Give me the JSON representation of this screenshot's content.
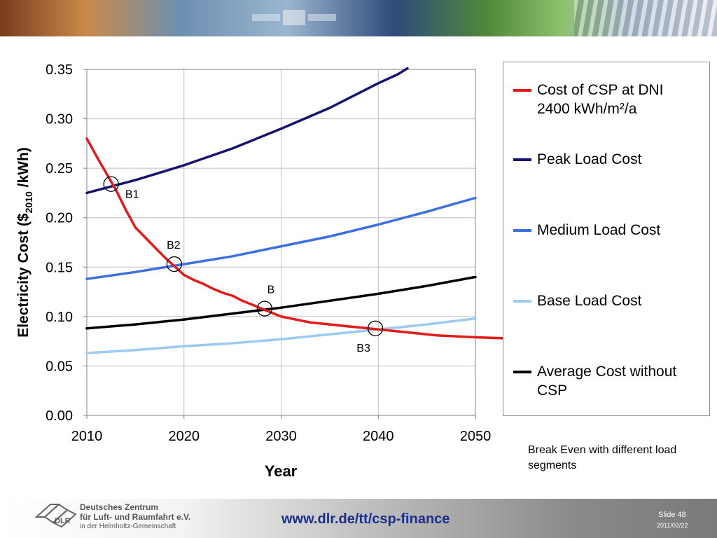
{
  "chart_data": {
    "type": "line",
    "title": "",
    "xlabel": "Year",
    "ylabel": "Electricity Cost ($2010 /kWh)",
    "ylabel_parts": {
      "main": "Electricity Cost ($",
      "sub": "2010",
      "tail": " /kWh)"
    },
    "xlim": [
      2010,
      2050
    ],
    "ylim": [
      0.0,
      0.35
    ],
    "x_ticks": [
      "2010",
      "2020",
      "2030",
      "2040",
      "2050"
    ],
    "y_ticks": [
      "0.00",
      "0.05",
      "0.10",
      "0.15",
      "0.20",
      "0.25",
      "0.30",
      "0.35"
    ],
    "grid": true,
    "legend_position": "right",
    "series": [
      {
        "name": "Cost of CSP at DNI 2400 kWh/m²/a",
        "color": "#e21b1b",
        "points": [
          [
            2010,
            0.28
          ],
          [
            2011,
            0.262
          ],
          [
            2012,
            0.245
          ],
          [
            2013,
            0.228
          ],
          [
            2014,
            0.208
          ],
          [
            2015,
            0.19
          ],
          [
            2016,
            0.18
          ],
          [
            2017,
            0.17
          ],
          [
            2018,
            0.16
          ],
          [
            2019,
            0.151
          ],
          [
            2020,
            0.142
          ],
          [
            2021,
            0.137
          ],
          [
            2022,
            0.133
          ],
          [
            2023,
            0.128
          ],
          [
            2024,
            0.124
          ],
          [
            2025,
            0.121
          ],
          [
            2026,
            0.116
          ],
          [
            2027,
            0.112
          ],
          [
            2028,
            0.108
          ],
          [
            2029,
            0.104
          ],
          [
            2030,
            0.1
          ],
          [
            2031,
            0.098
          ],
          [
            2032,
            0.096
          ],
          [
            2033,
            0.094
          ],
          [
            2034,
            0.093
          ],
          [
            2035,
            0.092
          ],
          [
            2036,
            0.091
          ],
          [
            2037,
            0.09
          ],
          [
            2038,
            0.089
          ],
          [
            2039,
            0.088
          ],
          [
            2040,
            0.087
          ],
          [
            2042,
            0.085
          ],
          [
            2044,
            0.083
          ],
          [
            2046,
            0.081
          ],
          [
            2048,
            0.08
          ],
          [
            2050,
            0.079
          ],
          [
            2053,
            0.078
          ]
        ]
      },
      {
        "name": "Peak Load Cost",
        "color": "#14146e",
        "points": [
          [
            2010,
            0.225
          ],
          [
            2015,
            0.238
          ],
          [
            2020,
            0.253
          ],
          [
            2025,
            0.27
          ],
          [
            2030,
            0.29
          ],
          [
            2035,
            0.311
          ],
          [
            2040,
            0.336
          ],
          [
            2042,
            0.345
          ],
          [
            2043,
            0.351
          ]
        ]
      },
      {
        "name": "Medium Load Cost",
        "color": "#3c6fe0",
        "points": [
          [
            2010,
            0.138
          ],
          [
            2015,
            0.145
          ],
          [
            2020,
            0.153
          ],
          [
            2025,
            0.161
          ],
          [
            2030,
            0.171
          ],
          [
            2035,
            0.181
          ],
          [
            2040,
            0.193
          ],
          [
            2045,
            0.206
          ],
          [
            2050,
            0.22
          ]
        ]
      },
      {
        "name": "Base Load Cost",
        "color": "#9ccaf0",
        "points": [
          [
            2010,
            0.063
          ],
          [
            2015,
            0.066
          ],
          [
            2020,
            0.07
          ],
          [
            2025,
            0.073
          ],
          [
            2030,
            0.077
          ],
          [
            2035,
            0.082
          ],
          [
            2040,
            0.087
          ],
          [
            2045,
            0.092
          ],
          [
            2050,
            0.098
          ]
        ]
      },
      {
        "name": "Average Cost without CSP",
        "color": "#000000",
        "points": [
          [
            2010,
            0.088
          ],
          [
            2015,
            0.092
          ],
          [
            2020,
            0.097
          ],
          [
            2025,
            0.103
          ],
          [
            2030,
            0.109
          ],
          [
            2035,
            0.116
          ],
          [
            2040,
            0.123
          ],
          [
            2045,
            0.131
          ],
          [
            2050,
            0.14
          ]
        ]
      }
    ],
    "annotations": [
      {
        "label": "B1",
        "x": 2012.5,
        "y": 0.234
      },
      {
        "label": "B2",
        "x": 2019.0,
        "y": 0.153
      },
      {
        "label": "B",
        "x": 2028.3,
        "y": 0.108
      },
      {
        "label": "B3",
        "x": 2039.7,
        "y": 0.088
      }
    ]
  },
  "legend_items": [
    "Cost of CSP at DNI 2400 kWh/m²/a",
    "Peak Load Cost",
    "Medium Load Cost",
    "Base Load Cost",
    "Average Cost without CSP"
  ],
  "note": "Break Even with different load segments",
  "footer": {
    "org_line1": "Deutsches Zentrum",
    "org_line2": "für Luft- und Raumfahrt e.V.",
    "org_line3": "in der Helmholtz-Gemeinschaft",
    "logo_word": "DLR",
    "url": "www.dlr.de/tt/csp-finance",
    "slide": "Slide 48",
    "date": "2011/02/22"
  }
}
